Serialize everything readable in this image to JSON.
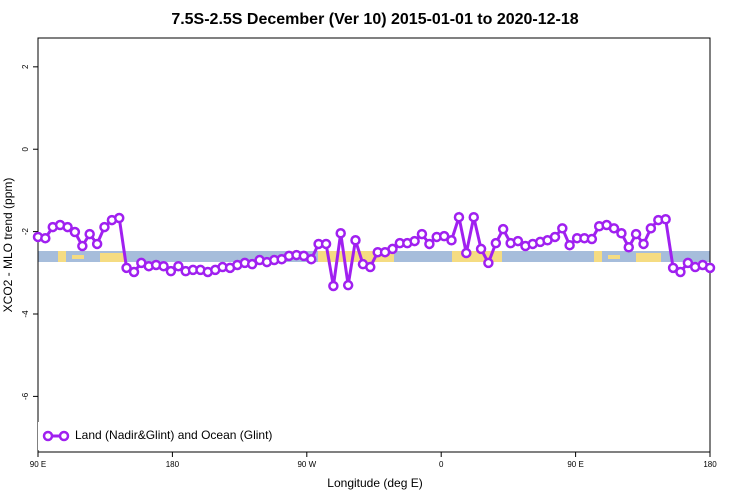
{
  "chart_data": {
    "type": "line",
    "title": "7.5S-2.5S December (Ver 10)   2015-01-01 to 2020-12-18",
    "x_label": "Longitude (deg E)",
    "y_label": "XCO2 - MLO trend (ppm)",
    "xlim": [
      90,
      540
    ],
    "ylim": [
      -7.35,
      2.7
    ],
    "xticks": [
      {
        "value": 90,
        "label": "90 E"
      },
      180,
      {
        "value": 270,
        "label": "90 W"
      },
      {
        "value": 360,
        "label": "0"
      },
      {
        "value": 450,
        "label": "90 E"
      },
      {
        "value": 540,
        "label": "180"
      }
    ],
    "yticks": [
      2,
      0,
      -2,
      -4,
      -6
    ],
    "x": [
      90.0,
      94.9,
      99.9,
      104.8,
      109.8,
      114.7,
      119.7,
      124.6,
      129.6,
      134.5,
      139.5,
      144.4,
      149.3,
      154.3,
      159.2,
      164.2,
      169.1,
      174.1,
      179.0,
      184.0,
      188.9,
      193.8,
      198.8,
      203.7,
      208.7,
      213.6,
      218.6,
      223.5,
      228.5,
      233.4,
      238.4,
      243.3,
      248.2,
      253.2,
      258.1,
      263.1,
      268.0,
      273.0,
      277.9,
      282.9,
      287.8,
      292.7,
      297.7,
      302.6,
      307.6,
      312.5,
      317.5,
      322.4,
      327.4,
      332.3,
      337.3,
      342.2,
      347.1,
      352.1,
      357.0,
      362.0,
      366.9,
      371.9,
      376.8,
      381.8,
      386.7,
      391.6,
      396.6,
      401.5,
      406.5,
      411.4,
      416.4,
      421.3,
      426.3,
      431.2,
      436.2,
      441.1,
      446.0,
      451.0,
      455.9,
      460.9,
      465.8,
      470.8,
      475.7,
      480.7,
      485.6,
      490.5,
      495.5,
      500.4,
      505.4,
      510.3,
      515.3,
      520.2,
      525.2,
      530.1,
      535.1,
      540.0
    ],
    "legend": "bottom-left",
    "series": [
      {
        "name": "Land (Nadir&Glint) and Ocean (Glint)",
        "color": "#a020f0",
        "values": [
          -2.13,
          -2.16,
          -1.89,
          -1.84,
          -1.89,
          -2.01,
          -2.35,
          -2.06,
          -2.3,
          -1.89,
          -1.72,
          -1.67,
          -2.88,
          -2.98,
          -2.76,
          -2.84,
          -2.81,
          -2.84,
          -2.96,
          -2.84,
          -2.96,
          -2.93,
          -2.93,
          -2.98,
          -2.93,
          -2.86,
          -2.88,
          -2.81,
          -2.76,
          -2.79,
          -2.69,
          -2.74,
          -2.69,
          -2.67,
          -2.59,
          -2.57,
          -2.59,
          -2.67,
          -2.3,
          -2.3,
          -3.32,
          -2.04,
          -3.3,
          -2.21,
          -2.79,
          -2.86,
          -2.5,
          -2.5,
          -2.42,
          -2.28,
          -2.28,
          -2.23,
          -2.06,
          -2.3,
          -2.13,
          -2.11,
          -2.21,
          -1.65,
          -2.52,
          -1.65,
          -2.42,
          -2.76,
          -2.28,
          -1.94,
          -2.28,
          -2.23,
          -2.35,
          -2.3,
          -2.25,
          -2.21,
          -2.13,
          -1.92,
          -2.33,
          -2.16,
          -2.16,
          -2.18,
          -1.87,
          -1.84,
          -1.92,
          -2.04,
          -2.38,
          -2.06,
          -2.3,
          -1.92,
          -1.72,
          -1.7,
          -2.88,
          -2.98,
          -2.76,
          -2.86,
          -2.81,
          -2.88
        ]
      }
    ]
  }
}
